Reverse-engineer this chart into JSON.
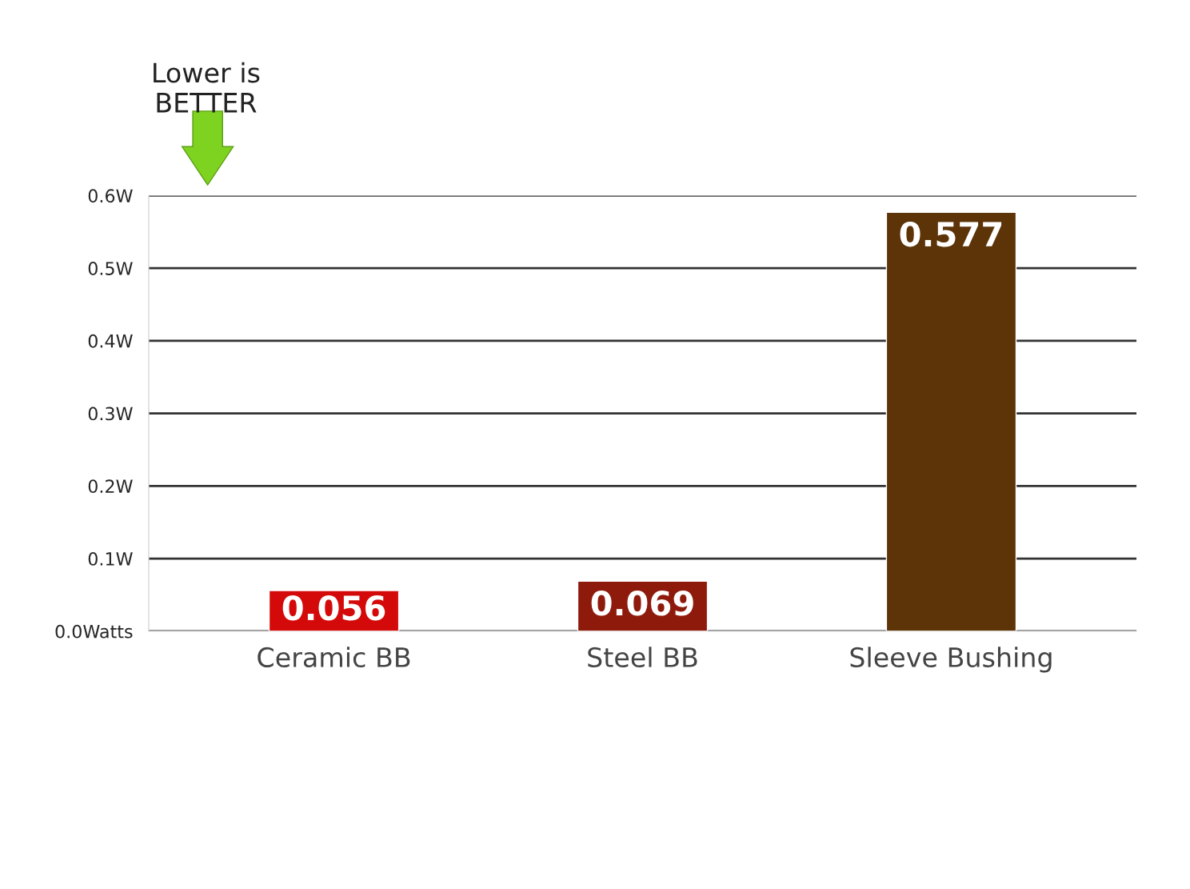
{
  "chart_data": {
    "type": "bar",
    "categories": [
      "Ceramic BB",
      "Steel BB",
      "Sleeve Bushing"
    ],
    "values": [
      0.056,
      0.069,
      0.577
    ],
    "colors": [
      "#d40a0a",
      "#8e1a0c",
      "#5c3408"
    ],
    "ylim": [
      0,
      0.6
    ],
    "yticks": [
      {
        "value": 0,
        "label": "0.0Watts"
      },
      {
        "value": 0.1,
        "label": "0.1W"
      },
      {
        "value": 0.2,
        "label": "0.2W"
      },
      {
        "value": 0.3,
        "label": "0.3W"
      },
      {
        "value": 0.4,
        "label": "0.4W"
      },
      {
        "value": 0.5,
        "label": "0.5W"
      },
      {
        "value": 0.6,
        "label": "0.6W"
      }
    ],
    "grid": "y",
    "data_labels": true,
    "annotations": [
      "Lower is\nBETTER"
    ]
  }
}
